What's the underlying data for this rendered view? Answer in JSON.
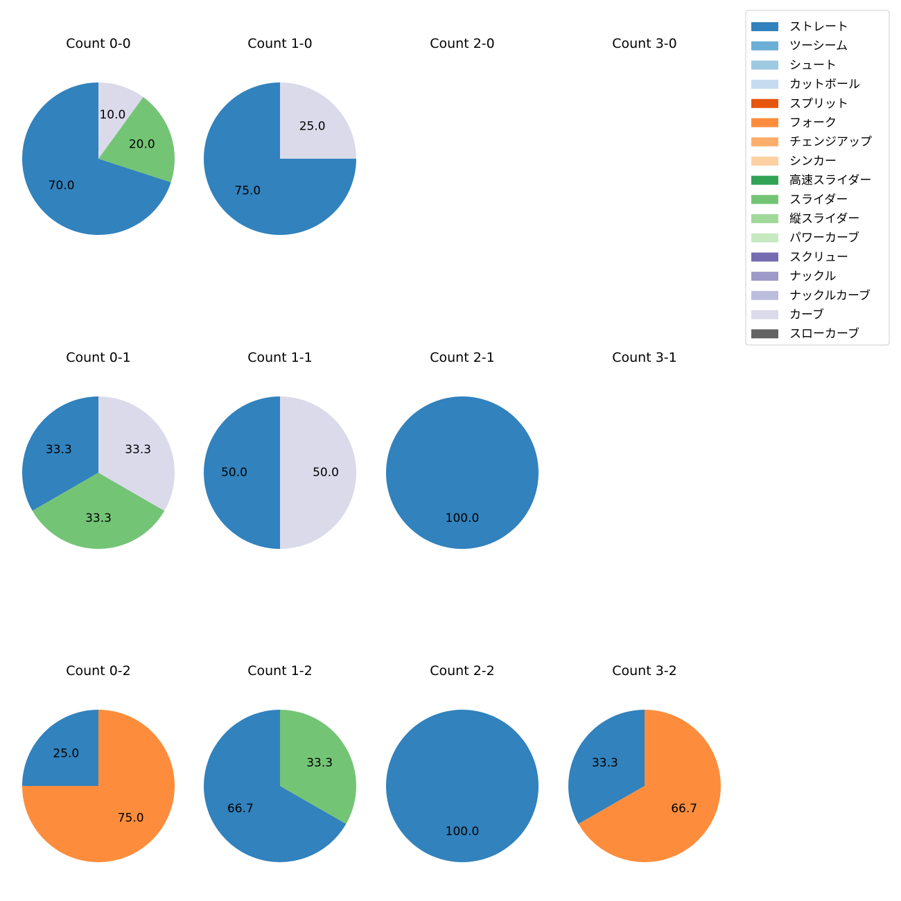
{
  "chart_data": {
    "type": "pie",
    "legend": {
      "placement": "top-right",
      "entries": [
        {
          "label": "ストレート",
          "color": "#3182bd"
        },
        {
          "label": "ツーシーム",
          "color": "#6baed6"
        },
        {
          "label": "シュート",
          "color": "#9ecae1"
        },
        {
          "label": "カットボール",
          "color": "#c6dbef"
        },
        {
          "label": "スプリット",
          "color": "#e6550d"
        },
        {
          "label": "フォーク",
          "color": "#fd8d3c"
        },
        {
          "label": "チェンジアップ",
          "color": "#fdae6b"
        },
        {
          "label": "シンカー",
          "color": "#fdd0a2"
        },
        {
          "label": "高速スライダー",
          "color": "#31a354"
        },
        {
          "label": "スライダー",
          "color": "#74c476"
        },
        {
          "label": "縦スライダー",
          "color": "#a1d99b"
        },
        {
          "label": "パワーカーブ",
          "color": "#c7e9c0"
        },
        {
          "label": "スクリュー",
          "color": "#756bb1"
        },
        {
          "label": "ナックル",
          "color": "#9e9ac8"
        },
        {
          "label": "ナックルカーブ",
          "color": "#bcbddc"
        },
        {
          "label": "カーブ",
          "color": "#dadaeb"
        },
        {
          "label": "スローカーブ",
          "color": "#636363"
        }
      ]
    },
    "charts": [
      {
        "title": "Count 0-0",
        "slices": [
          {
            "pitch": "ストレート",
            "value": 70.0,
            "label": "70.0"
          },
          {
            "pitch": "スライダー",
            "value": 20.0,
            "label": "20.0"
          },
          {
            "pitch": "カーブ",
            "value": 10.0,
            "label": "10.0"
          }
        ]
      },
      {
        "title": "Count 1-0",
        "slices": [
          {
            "pitch": "ストレート",
            "value": 75.0,
            "label": "75.0"
          },
          {
            "pitch": "カーブ",
            "value": 25.0,
            "label": "25.0"
          }
        ]
      },
      {
        "title": "Count 2-0",
        "slices": []
      },
      {
        "title": "Count 3-0",
        "slices": []
      },
      {
        "title": "Count 0-1",
        "slices": [
          {
            "pitch": "ストレート",
            "value": 33.3,
            "label": "33.3"
          },
          {
            "pitch": "スライダー",
            "value": 33.3,
            "label": "33.3"
          },
          {
            "pitch": "カーブ",
            "value": 33.3,
            "label": "33.3"
          }
        ]
      },
      {
        "title": "Count 1-1",
        "slices": [
          {
            "pitch": "ストレート",
            "value": 50.0,
            "label": "50.0"
          },
          {
            "pitch": "カーブ",
            "value": 50.0,
            "label": "50.0"
          }
        ]
      },
      {
        "title": "Count 2-1",
        "slices": [
          {
            "pitch": "ストレート",
            "value": 100.0,
            "label": "100.0"
          }
        ]
      },
      {
        "title": "Count 3-1",
        "slices": []
      },
      {
        "title": "Count 0-2",
        "slices": [
          {
            "pitch": "ストレート",
            "value": 25.0,
            "label": "25.0"
          },
          {
            "pitch": "フォーク",
            "value": 75.0,
            "label": "75.0"
          }
        ]
      },
      {
        "title": "Count 1-2",
        "slices": [
          {
            "pitch": "ストレート",
            "value": 66.7,
            "label": "66.7"
          },
          {
            "pitch": "スライダー",
            "value": 33.3,
            "label": "33.3"
          }
        ]
      },
      {
        "title": "Count 2-2",
        "slices": [
          {
            "pitch": "ストレート",
            "value": 100.0,
            "label": "100.0"
          }
        ]
      },
      {
        "title": "Count 3-2",
        "slices": [
          {
            "pitch": "ストレート",
            "value": 33.3,
            "label": "33.3"
          },
          {
            "pitch": "フォーク",
            "value": 66.7,
            "label": "66.7"
          }
        ]
      }
    ]
  }
}
